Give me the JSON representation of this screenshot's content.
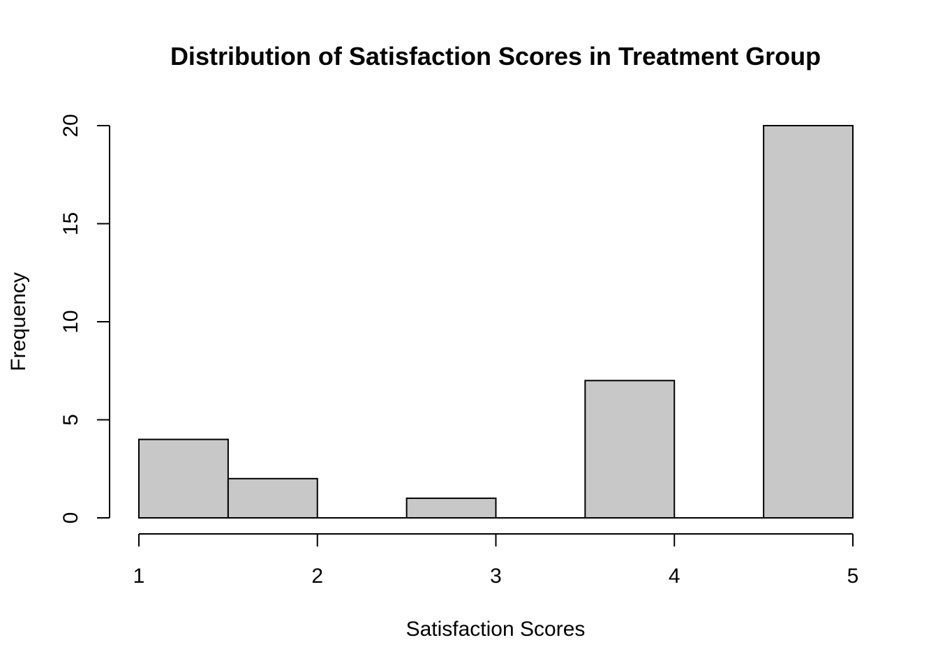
{
  "chart_data": {
    "type": "bar",
    "variant": "histogram",
    "title": "Distribution of Satisfaction Scores in Treatment Group",
    "xlabel": "Satisfaction Scores",
    "ylabel": "Frequency",
    "bins": [
      {
        "start": 1.0,
        "end": 1.5,
        "count": 4
      },
      {
        "start": 1.5,
        "end": 2.0,
        "count": 2
      },
      {
        "start": 2.0,
        "end": 2.5,
        "count": 0
      },
      {
        "start": 2.5,
        "end": 3.0,
        "count": 1
      },
      {
        "start": 3.0,
        "end": 3.5,
        "count": 0
      },
      {
        "start": 3.5,
        "end": 4.0,
        "count": 7
      },
      {
        "start": 4.0,
        "end": 4.5,
        "count": 0
      },
      {
        "start": 4.5,
        "end": 5.0,
        "count": 20
      }
    ],
    "xlim": [
      1,
      5
    ],
    "ylim": [
      0,
      20
    ],
    "x_ticks": [
      "1",
      "2",
      "3",
      "4",
      "5"
    ],
    "y_ticks": [
      "0",
      "5",
      "10",
      "15",
      "20"
    ],
    "grid": false,
    "legend": "none",
    "bar_fill_color": "#c8c8c8",
    "bar_stroke_color": "#000000"
  }
}
